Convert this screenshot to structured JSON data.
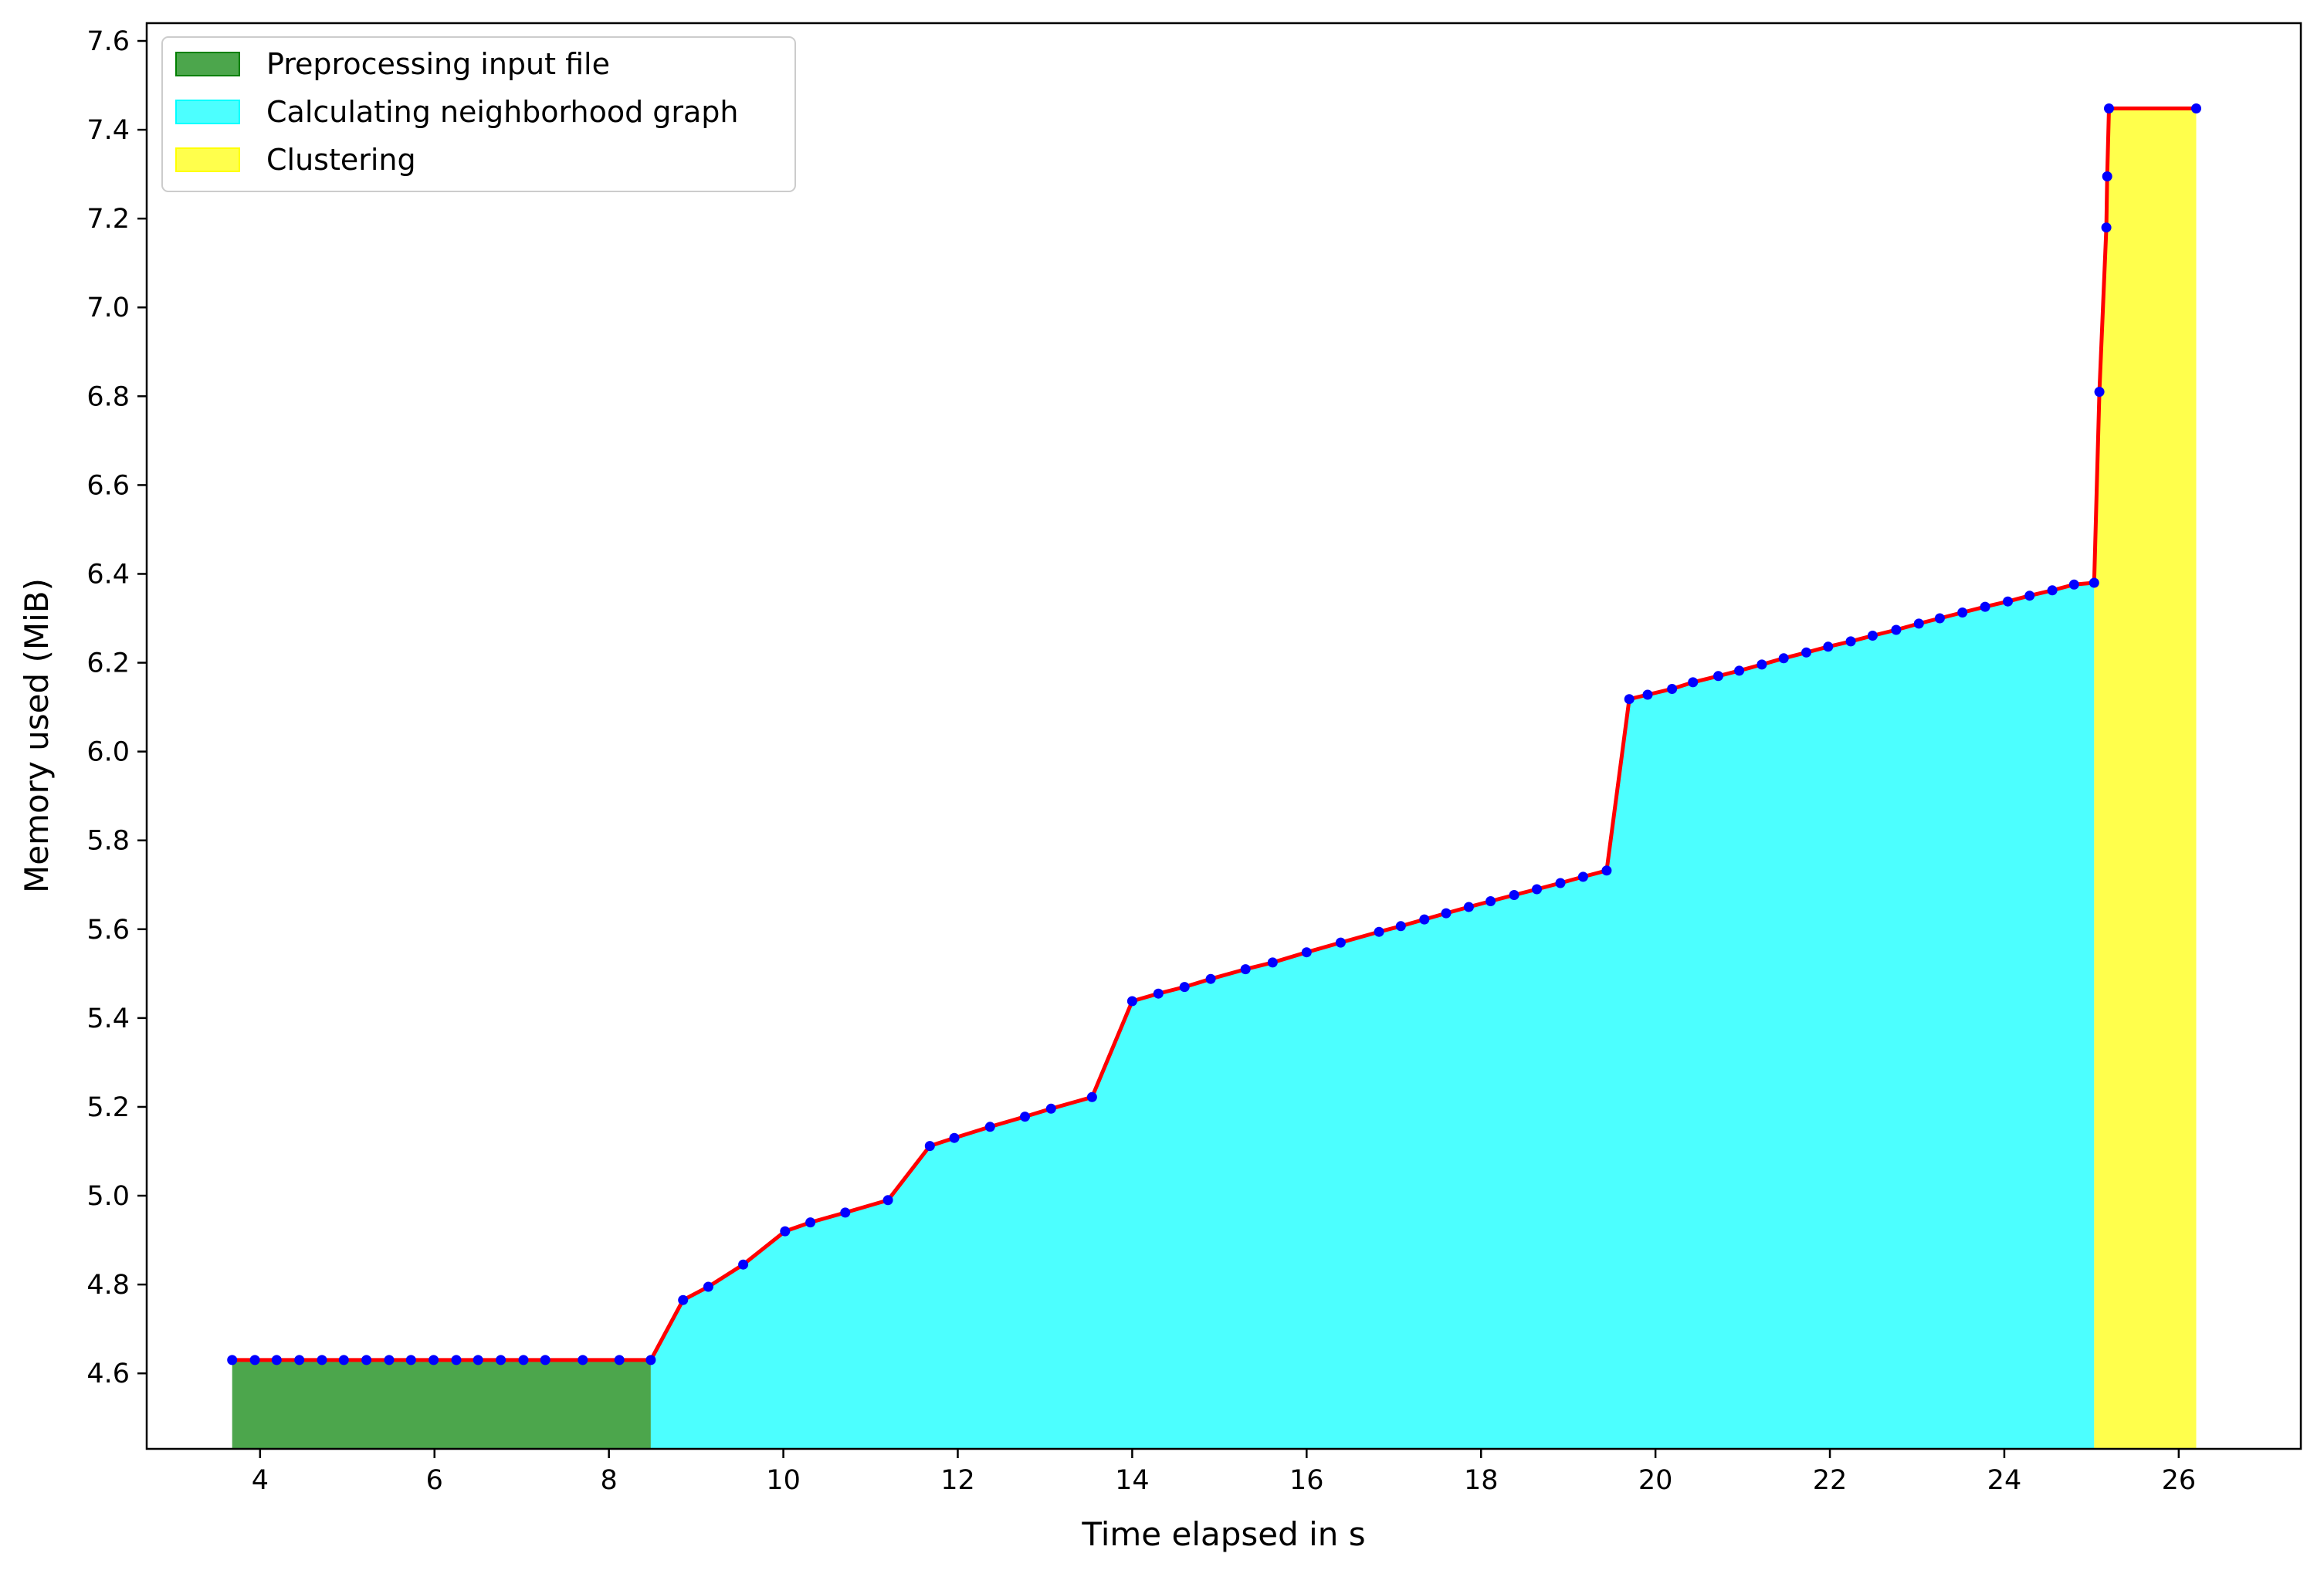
{
  "chart_data": {
    "type": "area",
    "title": "",
    "xlabel": "Time elapsed in s",
    "ylabel": "Memory used (MiB)",
    "xlim": [
      2.7,
      27.4
    ],
    "ylim": [
      4.43,
      7.64
    ],
    "xticks": [
      4,
      6,
      8,
      10,
      12,
      14,
      16,
      18,
      20,
      22,
      24,
      26
    ],
    "yticks": [
      4.6,
      4.8,
      5.0,
      5.2,
      5.4,
      5.6,
      5.8,
      6.0,
      6.2,
      6.4,
      6.6,
      6.8,
      7.0,
      7.2,
      7.4,
      7.6
    ],
    "grid": false,
    "legend_position": "top-left",
    "line_color": "#ff0000",
    "marker_color": "#0000ff",
    "phases": [
      {
        "name": "Preprocessing input file",
        "x_start": 3.68,
        "x_end": 8.48,
        "color": "#008000"
      },
      {
        "name": "Calculating neighborhood graph",
        "x_start": 8.48,
        "x_end": 25.03,
        "color": "#00ffff"
      },
      {
        "name": "Clustering",
        "x_start": 25.03,
        "x_end": 26.2,
        "color": "#ffff00"
      }
    ],
    "series": [
      {
        "x": [
          3.68,
          3.94,
          4.19,
          4.45,
          4.71,
          4.96,
          5.22,
          5.48,
          5.73,
          5.99,
          6.25,
          6.5,
          6.76,
          7.02,
          7.27,
          7.7,
          8.12,
          8.48,
          8.85,
          9.14,
          9.54,
          10.02,
          10.31,
          10.71,
          11.2,
          11.68,
          11.96,
          12.37,
          12.77,
          13.07,
          13.54,
          14.0,
          14.3,
          14.6,
          14.9,
          15.3,
          15.61,
          16.0,
          16.39,
          16.83,
          17.08,
          17.35,
          17.6,
          17.86,
          18.11,
          18.38,
          18.64,
          18.91,
          19.17,
          19.44,
          19.7,
          19.91,
          20.19,
          20.43,
          20.72,
          20.96,
          21.22,
          21.47,
          21.73,
          21.98,
          22.24,
          22.49,
          22.76,
          23.02,
          23.26,
          23.52,
          23.78,
          24.04,
          24.29,
          24.55,
          24.8,
          25.03,
          25.09,
          25.17,
          25.18,
          25.2,
          26.2
        ],
        "values": [
          4.63,
          4.63,
          4.63,
          4.63,
          4.63,
          4.63,
          4.63,
          4.63,
          4.63,
          4.63,
          4.63,
          4.63,
          4.63,
          4.63,
          4.63,
          4.63,
          4.63,
          4.63,
          4.765,
          4.795,
          4.845,
          4.92,
          4.94,
          4.962,
          4.99,
          5.112,
          5.13,
          5.155,
          5.178,
          5.196,
          5.222,
          5.438,
          5.455,
          5.47,
          5.488,
          5.51,
          5.525,
          5.548,
          5.57,
          5.594,
          5.607,
          5.622,
          5.636,
          5.65,
          5.663,
          5.677,
          5.69,
          5.704,
          5.718,
          5.732,
          6.118,
          6.128,
          6.141,
          6.156,
          6.17,
          6.182,
          6.196,
          6.21,
          6.223,
          6.236,
          6.248,
          6.261,
          6.274,
          6.288,
          6.3,
          6.313,
          6.326,
          6.338,
          6.351,
          6.363,
          6.376,
          6.38,
          6.81,
          7.18,
          7.295,
          7.448,
          7.448
        ]
      }
    ]
  }
}
